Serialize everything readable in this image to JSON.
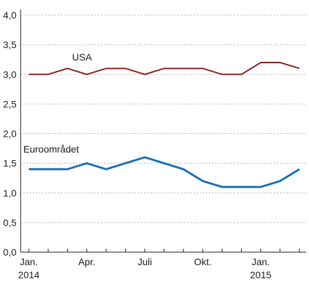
{
  "chart_data": {
    "type": "line",
    "title": "",
    "xlabel": "",
    "ylabel": "",
    "ylim": [
      0,
      4
    ],
    "yticks": [
      "0,0",
      "0,5",
      "1,0",
      "1,5",
      "2,0",
      "2,5",
      "3,0",
      "3,5",
      "4,0"
    ],
    "ytick_values": [
      0,
      0.5,
      1,
      1.5,
      2,
      2.5,
      3,
      3.5,
      4
    ],
    "x": [
      "2014-01",
      "2014-02",
      "2014-03",
      "2014-04",
      "2014-05",
      "2014-06",
      "2014-07",
      "2014-08",
      "2014-09",
      "2014-10",
      "2014-11",
      "2014-12",
      "2015-01",
      "2015-02",
      "2015-03"
    ],
    "xticks": [
      {
        "x": "2014-01",
        "line1": "Jan.",
        "line2": "2014"
      },
      {
        "x": "2014-04",
        "line1": "Apr.",
        "line2": ""
      },
      {
        "x": "2014-07",
        "line1": "Juli",
        "line2": ""
      },
      {
        "x": "2014-10",
        "line1": "Okt.",
        "line2": ""
      },
      {
        "x": "2015-01",
        "line1": "Jan.",
        "line2": "2015"
      }
    ],
    "grid": true,
    "series": [
      {
        "name": "USA",
        "color": "#8b1a1a",
        "values": [
          3.0,
          3.0,
          3.1,
          3.0,
          3.1,
          3.1,
          3.0,
          3.1,
          3.1,
          3.1,
          3.0,
          3.0,
          3.2,
          3.2,
          3.1
        ]
      },
      {
        "name": "Euroområdet",
        "color": "#1a6fb5",
        "values": [
          1.4,
          1.4,
          1.4,
          1.5,
          1.4,
          1.5,
          1.6,
          1.5,
          1.4,
          1.2,
          1.1,
          1.1,
          1.1,
          1.2,
          1.4
        ]
      }
    ]
  }
}
